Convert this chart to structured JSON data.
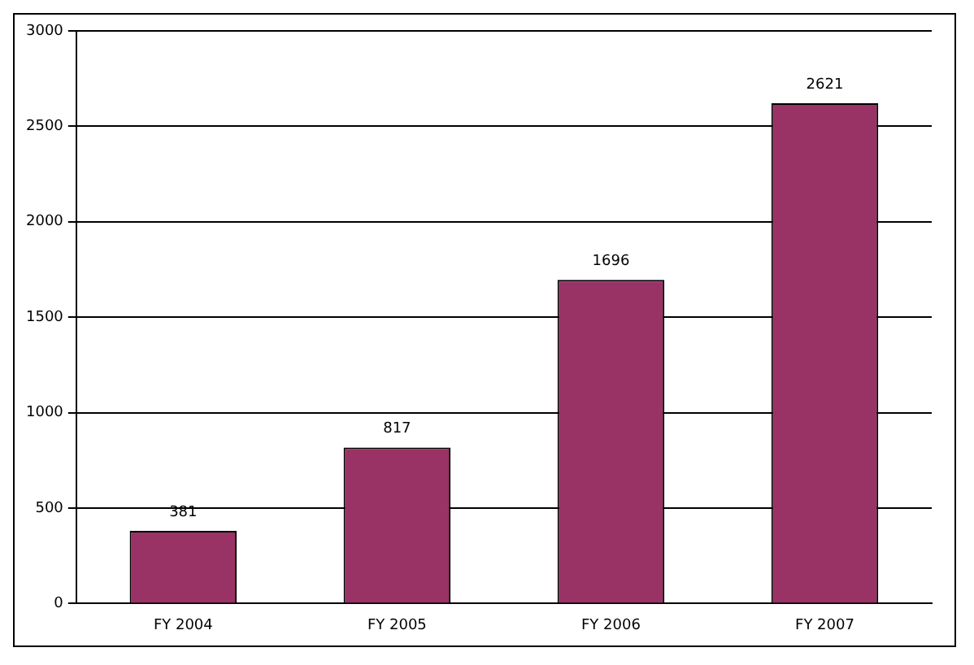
{
  "chart_data": {
    "type": "bar",
    "categories": [
      "FY 2004",
      "FY 2005",
      "FY 2006",
      "FY 2007"
    ],
    "values": [
      381,
      817,
      1696,
      2621
    ],
    "color": "#993366",
    "ylim": [
      0,
      3000
    ],
    "yticks": [
      0,
      500,
      1000,
      1500,
      2000,
      2500,
      3000
    ],
    "grid": "y",
    "data_labels": true,
    "legend": false
  }
}
